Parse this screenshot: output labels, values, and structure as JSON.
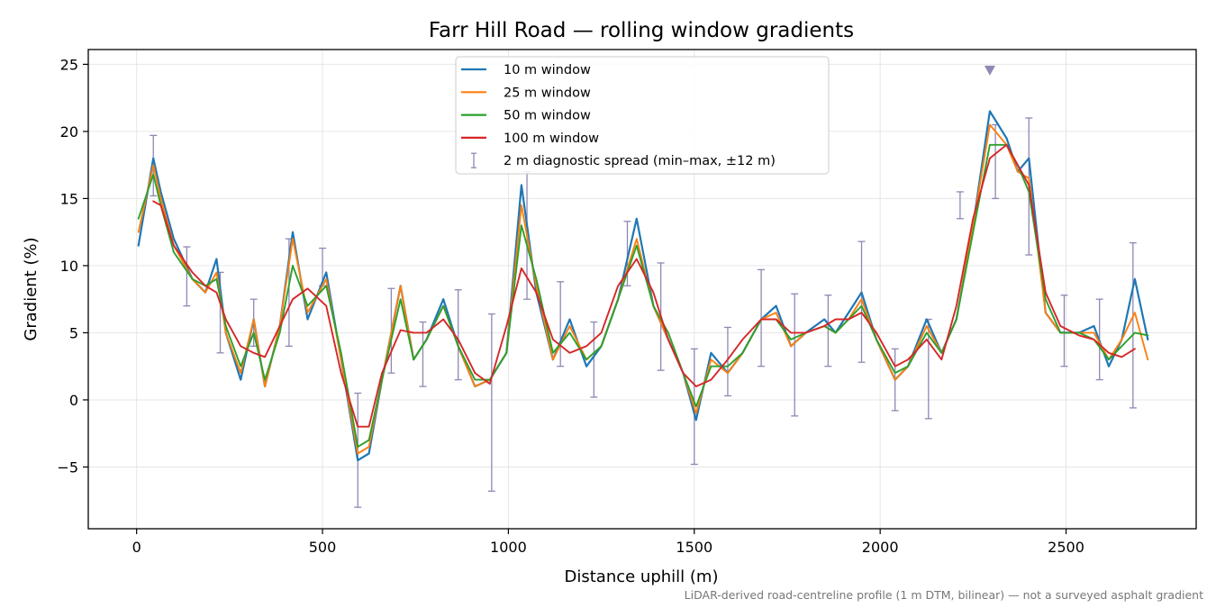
{
  "chart_data": {
    "type": "line",
    "title": "Farr Hill Road — rolling window gradients",
    "xlabel": "Distance uphill (m)",
    "ylabel": "Gradient (%)",
    "xlim": [
      -130,
      2850
    ],
    "ylim": [
      -9.6,
      26.1
    ],
    "xticks": [
      0,
      500,
      1000,
      1500,
      2000,
      2500
    ],
    "yticks": [
      -5,
      0,
      5,
      10,
      15,
      20,
      25
    ],
    "grid": true,
    "legend_position": "top-center",
    "footnote": "LiDAR-derived road-centreline profile (1 m DTM, bilinear) — not a surveyed asphalt gradient",
    "x": [
      5,
      45,
      65,
      100,
      150,
      185,
      215,
      240,
      280,
      315,
      345,
      385,
      420,
      460,
      510,
      550,
      595,
      625,
      660,
      710,
      745,
      780,
      825,
      865,
      910,
      950,
      995,
      1035,
      1075,
      1120,
      1165,
      1210,
      1250,
      1295,
      1345,
      1390,
      1430,
      1470,
      1505,
      1545,
      1590,
      1630,
      1680,
      1720,
      1760,
      1800,
      1850,
      1880,
      1915,
      1950,
      1990,
      2040,
      2075,
      2125,
      2165,
      2205,
      2250,
      2295,
      2340,
      2370,
      2400,
      2445,
      2485,
      2535,
      2575,
      2615,
      2650,
      2685,
      2720
    ],
    "series": [
      {
        "name": "10 m window",
        "color": "#1f77b4",
        "values": [
          11.5,
          18.0,
          15.5,
          12.0,
          9.0,
          8.0,
          10.5,
          5.0,
          1.5,
          6.0,
          1.0,
          5.5,
          12.5,
          6.0,
          9.5,
          3.0,
          -4.5,
          -4.0,
          1.5,
          8.5,
          3.0,
          4.5,
          7.5,
          4.0,
          1.0,
          1.5,
          3.5,
          16.0,
          8.0,
          3.0,
          6.0,
          2.5,
          4.0,
          7.5,
          13.5,
          7.0,
          4.5,
          2.0,
          -1.5,
          3.5,
          2.0,
          3.5,
          6.0,
          7.0,
          4.0,
          5.0,
          6.0,
          5.0,
          6.5,
          8.0,
          4.5,
          1.5,
          2.5,
          6.0,
          3.5,
          6.0,
          13.0,
          21.5,
          19.5,
          17.0,
          18.0,
          6.5,
          5.0,
          5.0,
          5.5,
          2.5,
          4.5,
          9.0,
          4.5
        ]
      },
      {
        "name": "25 m window",
        "color": "#ff7f0e",
        "values": [
          12.5,
          17.5,
          15.0,
          11.5,
          9.0,
          8.0,
          9.5,
          5.0,
          2.0,
          6.0,
          1.0,
          5.5,
          12.0,
          6.5,
          9.0,
          3.0,
          -4.0,
          -3.5,
          1.5,
          8.5,
          3.0,
          4.5,
          7.0,
          4.0,
          1.0,
          1.5,
          3.5,
          14.5,
          8.5,
          3.0,
          5.5,
          3.0,
          4.0,
          7.5,
          12.0,
          7.0,
          4.5,
          2.0,
          -1.0,
          3.0,
          2.0,
          3.5,
          6.0,
          6.5,
          4.0,
          5.0,
          5.5,
          5.0,
          6.0,
          7.5,
          4.5,
          1.5,
          2.5,
          5.5,
          3.5,
          6.0,
          13.0,
          20.5,
          19.0,
          17.0,
          16.5,
          6.5,
          5.0,
          5.0,
          5.0,
          3.0,
          4.5,
          6.5,
          3.0
        ]
      },
      {
        "name": "50 m window",
        "color": "#2ca02c",
        "values": [
          13.5,
          16.8,
          14.5,
          11.0,
          9.0,
          8.5,
          9.0,
          5.5,
          2.5,
          5.0,
          1.5,
          5.0,
          10.0,
          7.0,
          8.5,
          3.5,
          -3.5,
          -3.0,
          1.5,
          7.5,
          3.0,
          4.5,
          7.0,
          4.0,
          1.5,
          1.5,
          3.5,
          13.0,
          9.0,
          3.5,
          5.0,
          3.0,
          4.0,
          7.5,
          11.5,
          7.0,
          5.0,
          2.0,
          -0.5,
          2.5,
          2.5,
          3.5,
          6.0,
          6.0,
          4.5,
          5.0,
          5.5,
          5.0,
          6.0,
          7.0,
          4.5,
          2.0,
          2.5,
          5.0,
          3.5,
          6.0,
          12.5,
          19.0,
          19.0,
          17.5,
          15.5,
          7.5,
          5.0,
          5.0,
          4.5,
          3.0,
          4.0,
          5.0,
          4.8
        ]
      },
      {
        "name": "100 m window",
        "color": "#d62728",
        "values": [
          null,
          14.8,
          14.5,
          11.5,
          9.5,
          8.5,
          8.0,
          6.0,
          4.0,
          3.5,
          3.2,
          5.5,
          7.5,
          8.3,
          7.0,
          2.0,
          -2.0,
          -2.0,
          2.0,
          5.2,
          5.0,
          5.0,
          6.0,
          4.5,
          2.0,
          1.2,
          5.5,
          9.8,
          8.0,
          4.5,
          3.5,
          4.0,
          5.0,
          8.5,
          10.5,
          8.0,
          4.5,
          2.0,
          1.0,
          1.5,
          3.0,
          4.5,
          6.0,
          6.0,
          5.0,
          5.0,
          5.5,
          6.0,
          6.0,
          6.5,
          5.0,
          2.5,
          3.0,
          4.5,
          3.0,
          7.0,
          13.5,
          18.0,
          19.0,
          17.5,
          16.0,
          8.0,
          5.5,
          4.8,
          4.5,
          3.5,
          3.2,
          3.8,
          null
        ]
      }
    ],
    "diagnostic_spread": {
      "name": "2 m diagnostic spread (min–max, ±12 m)",
      "color": "#8e88b5",
      "x": [
        45,
        135,
        225,
        315,
        410,
        500,
        595,
        685,
        770,
        865,
        955,
        1050,
        1140,
        1230,
        1320,
        1410,
        1500,
        1590,
        1680,
        1770,
        1860,
        1950,
        2040,
        2130,
        2215,
        2310,
        2400,
        2495,
        2590,
        2680
      ],
      "low": [
        15.2,
        7.0,
        3.5,
        4.0,
        4.0,
        8.5,
        -8.0,
        2.0,
        1.0,
        1.5,
        -6.8,
        7.5,
        2.5,
        0.2,
        8.5,
        2.2,
        -4.8,
        0.3,
        2.5,
        -1.2,
        2.5,
        2.8,
        -0.8,
        -1.4,
        13.5,
        15.0,
        10.8,
        2.5,
        1.5,
        -0.6
      ],
      "high": [
        19.7,
        11.4,
        9.5,
        7.5,
        12.0,
        11.3,
        0.5,
        8.3,
        5.8,
        8.2,
        6.4,
        17.0,
        8.8,
        5.8,
        13.3,
        10.2,
        3.8,
        5.4,
        9.7,
        7.9,
        7.8,
        11.8,
        3.8,
        6.0,
        15.5,
        20.5,
        21.0,
        7.8,
        7.5,
        11.7
      ]
    },
    "marker": {
      "x": 2295,
      "y": 24.5,
      "shape": "triangle-down",
      "color": "#8e88b5"
    }
  }
}
